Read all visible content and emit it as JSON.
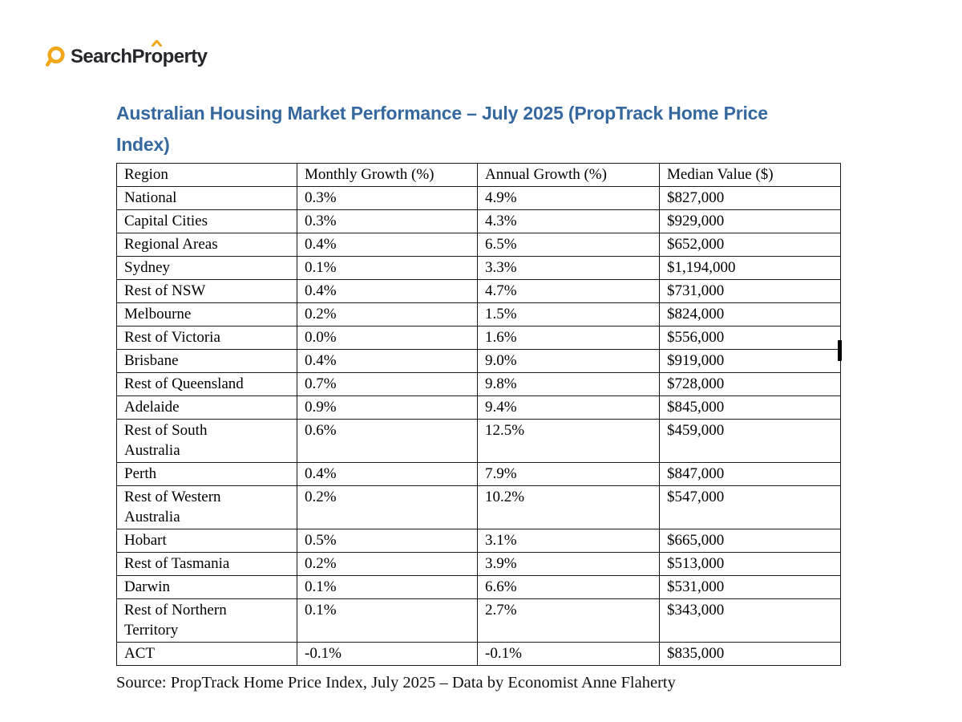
{
  "logo": {
    "icon": "magnifier-icon",
    "part1": "Search",
    "part2_pre_o": "Pr",
    "part2_o": "o",
    "part2_post_o": "perty"
  },
  "title": {
    "lines": [
      "Australian Housing Market Performance – July 2025 (PropTrack Home Price",
      "Index)"
    ]
  },
  "table": {
    "headers": [
      "Region",
      "Monthly Growth (%)",
      "Annual Growth (%)",
      "Median Value ($)"
    ],
    "rows": [
      [
        "National",
        "0.3%",
        "4.9%",
        "$827,000"
      ],
      [
        "Capital Cities",
        "0.3%",
        "4.3%",
        "$929,000"
      ],
      [
        "Regional Areas",
        "0.4%",
        "6.5%",
        "$652,000"
      ],
      [
        "Sydney",
        "0.1%",
        "3.3%",
        "$1,194,000"
      ],
      [
        "Rest of NSW",
        "0.4%",
        "4.7%",
        "$731,000"
      ],
      [
        "Melbourne",
        "0.2%",
        "1.5%",
        "$824,000"
      ],
      [
        "Rest of Victoria",
        "0.0%",
        "1.6%",
        "$556,000"
      ],
      [
        "Brisbane",
        "0.4%",
        "9.0%",
        "$919,000"
      ],
      [
        "Rest of Queensland",
        "0.7%",
        "9.8%",
        "$728,000"
      ],
      [
        "Adelaide",
        "0.9%",
        "9.4%",
        "$845,000"
      ],
      [
        "Rest of South\nAustralia",
        "0.6%",
        "12.5%",
        "$459,000"
      ],
      [
        "Perth",
        "0.4%",
        "7.9%",
        "$847,000"
      ],
      [
        "Rest of Western\nAustralia",
        "0.2%",
        "10.2%",
        "$547,000"
      ],
      [
        "Hobart",
        "0.5%",
        "3.1%",
        "$665,000"
      ],
      [
        "Rest of Tasmania",
        "0.2%",
        "3.9%",
        "$513,000"
      ],
      [
        "Darwin",
        "0.1%",
        "6.6%",
        "$531,000"
      ],
      [
        "Rest of Northern\nTerritory",
        "0.1%",
        "2.7%",
        "$343,000"
      ],
      [
        "ACT",
        "-0.1%",
        "-0.1%",
        "$835,000"
      ]
    ]
  },
  "source": "Source: PropTrack Home Price Index, July 2025 – Data by Economist Anne Flaherty",
  "colors": {
    "title_blue": "#35689f",
    "logo_amber": "#f2a71b",
    "logo_text": "#26252b",
    "table_border": "#1b1b1b",
    "body_text": "#000000"
  }
}
